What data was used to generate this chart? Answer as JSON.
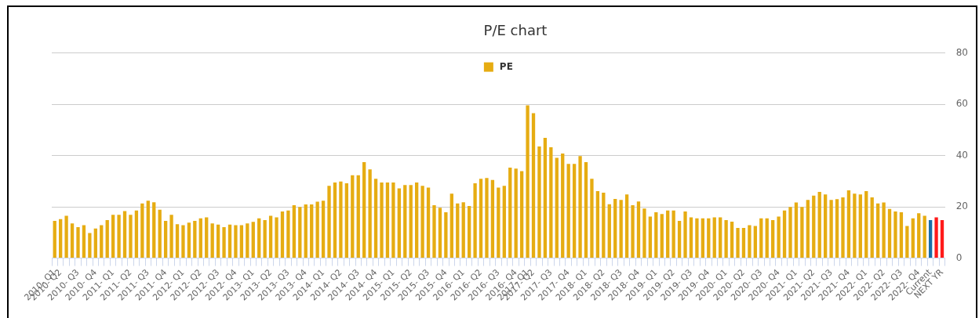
{
  "chart_data": {
    "type": "bar",
    "title": "P/E chart",
    "categories": [
      "2010- Q1",
      "2010- Q2",
      null,
      null,
      "2010- Q3",
      null,
      null,
      "2010- Q4",
      null,
      null,
      "2011- Q1",
      null,
      null,
      "2011- Q2",
      null,
      null,
      "2011- Q3",
      null,
      null,
      "2011- Q4",
      null,
      null,
      "2012- Q1",
      null,
      null,
      "2012- Q2",
      null,
      null,
      "2012- Q3",
      null,
      null,
      "2012- Q4",
      null,
      null,
      "2013- Q1",
      null,
      null,
      "2013- Q2",
      null,
      null,
      "2013- Q3",
      null,
      null,
      "2013- Q4",
      null,
      null,
      "2014- Q1",
      null,
      null,
      "2014- Q2",
      null,
      null,
      "2014- Q3",
      null,
      null,
      "2014- Q4",
      null,
      null,
      "2015- Q1",
      null,
      null,
      "2015- Q2",
      null,
      null,
      "2015- Q3",
      null,
      null,
      "2015- Q4",
      null,
      null,
      "2016- Q1",
      null,
      null,
      "2016- Q2",
      null,
      null,
      "2016- Q3",
      null,
      null,
      "2016- Q4",
      null,
      "2017- Q1",
      "2017- Q2",
      null,
      null,
      "2017- Q3",
      null,
      null,
      "2017- Q4",
      null,
      null,
      "2018- Q1",
      null,
      null,
      "2018- Q2",
      null,
      null,
      "2018- Q3",
      null,
      null,
      "2018- Q4",
      null,
      null,
      "2019- Q1",
      null,
      null,
      "2019- Q2",
      null,
      null,
      "2019- Q3",
      null,
      null,
      "2019- Q4",
      null,
      null,
      "2020- Q1",
      null,
      null,
      "2020- Q2",
      null,
      null,
      "2020- Q3",
      null,
      null,
      "2020- Q4",
      null,
      null,
      "2021- Q1",
      null,
      null,
      "2021- Q2",
      null,
      null,
      "2021- Q3",
      null,
      null,
      "2021- Q4",
      null,
      null,
      "2022- Q1",
      null,
      null,
      "2022- Q2",
      null,
      null,
      "2022- Q3",
      null,
      null,
      "2022- Q4",
      null,
      "Current",
      null,
      "NEXT YR"
    ],
    "series": [
      {
        "name": "PE",
        "color": "#e6ac12",
        "values": [
          14.5,
          15.2,
          16.5,
          13.5,
          12.1,
          12.8,
          9.8,
          11.5,
          12.8,
          14.8,
          16.9,
          16.9,
          18.3,
          16.9,
          18.6,
          21.3,
          22.4,
          21.8,
          18.9,
          14.5,
          16.9,
          13.2,
          12.8,
          13.8,
          14.5,
          15.5,
          15.9,
          13.5,
          13.1,
          12.1,
          13.1,
          12.8,
          12.8,
          13.5,
          14.1,
          15.5,
          14.8,
          16.5,
          15.9,
          18.2,
          18.6,
          20.6,
          19.9,
          20.9,
          20.9,
          22.0,
          22.4,
          28.2,
          29.5,
          29.9,
          29.2,
          32.3,
          32.3,
          37.4,
          34.6,
          30.9,
          29.5,
          29.5,
          29.5,
          27.2,
          28.5,
          28.5,
          29.5,
          28.2,
          27.5,
          20.6,
          19.6,
          17.9,
          25.1,
          21.3,
          21.8,
          20.3,
          29.2,
          30.9,
          31.2,
          30.5,
          27.5,
          28.2,
          35.3,
          34.9,
          33.9,
          59.6,
          56.5,
          43.5,
          46.9,
          43.2,
          39.1,
          40.8,
          36.7,
          36.7,
          39.8,
          37.4,
          30.9,
          26.1,
          25.5,
          21.0,
          23.1,
          22.7,
          24.8,
          20.6,
          22.1,
          19.3,
          16.2,
          17.9,
          17.2,
          18.6,
          18.6,
          14.5,
          18.2,
          15.9,
          15.5,
          15.5,
          15.5,
          15.9,
          15.9,
          14.8,
          14.2,
          11.8,
          11.8,
          12.8,
          12.5,
          15.5,
          15.5,
          14.8,
          16.2,
          18.6,
          19.9,
          21.7,
          19.9,
          22.7,
          24.4,
          25.8,
          24.8,
          22.7,
          23.0,
          23.7,
          26.4,
          25.1,
          24.8,
          26.1,
          23.7,
          21.3,
          21.7,
          19.2,
          18.2,
          17.9,
          12.5,
          15.5,
          17.5,
          16.5,
          14.8,
          15.9,
          14.8
        ],
        "colors": [
          "#e6ac12",
          "#e6ac12",
          "#e6ac12",
          "#e6ac12",
          "#e6ac12",
          "#e6ac12",
          "#e6ac12",
          "#e6ac12",
          "#e6ac12",
          "#e6ac12",
          "#e6ac12",
          "#e6ac12",
          "#e6ac12",
          "#e6ac12",
          "#e6ac12",
          "#e6ac12",
          "#e6ac12",
          "#e6ac12",
          "#e6ac12",
          "#e6ac12",
          "#e6ac12",
          "#e6ac12",
          "#e6ac12",
          "#e6ac12",
          "#e6ac12",
          "#e6ac12",
          "#e6ac12",
          "#e6ac12",
          "#e6ac12",
          "#e6ac12",
          "#e6ac12",
          "#e6ac12",
          "#e6ac12",
          "#e6ac12",
          "#e6ac12",
          "#e6ac12",
          "#e6ac12",
          "#e6ac12",
          "#e6ac12",
          "#e6ac12",
          "#e6ac12",
          "#e6ac12",
          "#e6ac12",
          "#e6ac12",
          "#e6ac12",
          "#e6ac12",
          "#e6ac12",
          "#e6ac12",
          "#e6ac12",
          "#e6ac12",
          "#e6ac12",
          "#e6ac12",
          "#e6ac12",
          "#e6ac12",
          "#e6ac12",
          "#e6ac12",
          "#e6ac12",
          "#e6ac12",
          "#e6ac12",
          "#e6ac12",
          "#e6ac12",
          "#e6ac12",
          "#e6ac12",
          "#e6ac12",
          "#e6ac12",
          "#e6ac12",
          "#e6ac12",
          "#e6ac12",
          "#e6ac12",
          "#e6ac12",
          "#e6ac12",
          "#e6ac12",
          "#e6ac12",
          "#e6ac12",
          "#e6ac12",
          "#e6ac12",
          "#e6ac12",
          "#e6ac12",
          "#e6ac12",
          "#e6ac12",
          "#e6ac12",
          "#e6ac12",
          "#e6ac12",
          "#e6ac12",
          "#e6ac12",
          "#e6ac12",
          "#e6ac12",
          "#e6ac12",
          "#e6ac12",
          "#e6ac12",
          "#e6ac12",
          "#e6ac12",
          "#e6ac12",
          "#e6ac12",
          "#e6ac12",
          "#e6ac12",
          "#e6ac12",
          "#e6ac12",
          "#e6ac12",
          "#e6ac12",
          "#e6ac12",
          "#e6ac12",
          "#e6ac12",
          "#e6ac12",
          "#e6ac12",
          "#e6ac12",
          "#e6ac12",
          "#e6ac12",
          "#e6ac12",
          "#e6ac12",
          "#e6ac12",
          "#e6ac12",
          "#e6ac12",
          "#e6ac12",
          "#e6ac12",
          "#e6ac12",
          "#e6ac12",
          "#e6ac12",
          "#e6ac12",
          "#e6ac12",
          "#e6ac12",
          "#e6ac12",
          "#e6ac12",
          "#e6ac12",
          "#e6ac12",
          "#e6ac12",
          "#e6ac12",
          "#e6ac12",
          "#e6ac12",
          "#e6ac12",
          "#e6ac12",
          "#e6ac12",
          "#e6ac12",
          "#e6ac12",
          "#e6ac12",
          "#e6ac12",
          "#e6ac12",
          "#e6ac12",
          "#e6ac12",
          "#e6ac12",
          "#e6ac12",
          "#e6ac12",
          "#e6ac12",
          "#e6ac12",
          "#e6ac12",
          "#e6ac12",
          "#e6ac12",
          "#e6ac12",
          "#e6ac12",
          "#e6ac12",
          "#1a6fa8",
          "#ff1a1a",
          "#ff1a1a"
        ]
      }
    ],
    "ylim": [
      0,
      80
    ],
    "yticks": [
      0,
      20,
      40,
      60,
      80
    ],
    "grid": "y",
    "legend": "top"
  }
}
